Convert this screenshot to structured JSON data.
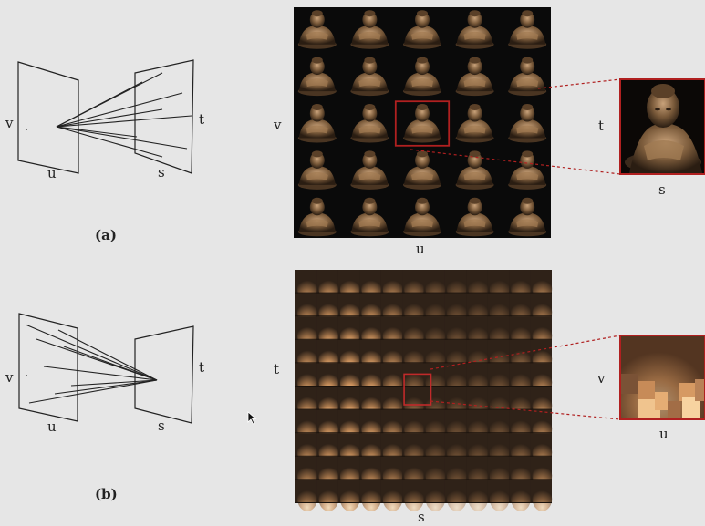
{
  "panel_a": {
    "caption": "(a)",
    "diagram": {
      "left_plane_h": "v",
      "left_plane_v": "u",
      "right_plane_h": "t",
      "right_plane_v": "s"
    },
    "grid": {
      "rows": 5,
      "cols": 5,
      "highlight_row": 2,
      "highlight_col": 2,
      "label_side": "v",
      "label_bottom": "u"
    },
    "zoom": {
      "label_side": "t",
      "label_bottom": "s"
    }
  },
  "panel_b": {
    "caption": "(b)",
    "diagram": {
      "left_plane_h": "v",
      "left_plane_v": "u",
      "right_plane_h": "t",
      "right_plane_v": "s"
    },
    "grid": {
      "rows": 10,
      "cols": 12,
      "highlight_row": 4,
      "highlight_col": 5,
      "label_side": "t",
      "label_bottom": "s"
    },
    "zoom": {
      "label_side": "v",
      "label_bottom": "u"
    }
  },
  "colors": {
    "background": "#e6e6e6",
    "line": "#222222",
    "highlight": "#b02020",
    "image_bg": "#0a0a0a",
    "statue": "#7a5a3a",
    "blur_light": "#f3c48a",
    "blur_dark": "#3a2a1c"
  }
}
